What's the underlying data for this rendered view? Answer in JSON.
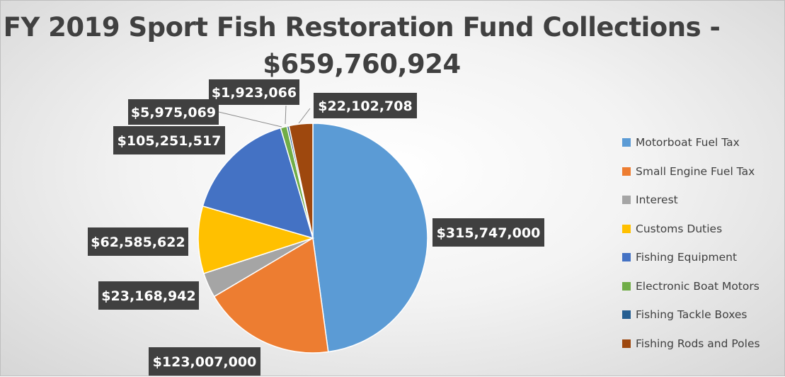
{
  "chart_data": {
    "type": "pie",
    "title_lines": [
      "FY 2019 Sport Fish Restoration Fund Collections -",
      "$659,760,924"
    ],
    "categories": [
      "Motorboat Fuel Tax",
      "Small Engine Fuel Tax",
      "Interest",
      "Customs Duties",
      "Fishing Equipment",
      "Electronic Boat Motors",
      "Fishing Tackle Boxes",
      "Fishing Rods and Poles"
    ],
    "values": [
      315747000,
      123007000,
      23168942,
      62585622,
      105251517,
      5975069,
      1923066,
      22102708
    ],
    "data_labels": [
      "$315,747,000",
      "$123,007,000",
      "$23,168,942",
      "$62,585,622",
      "$105,251,517",
      "$5,975,069",
      "$1,923,066",
      "$22,102,708"
    ],
    "colors": [
      "#5b9bd5",
      "#ed7d31",
      "#a5a5a5",
      "#ffc000",
      "#4472c4",
      "#70ad47",
      "#255e91",
      "#9e480e"
    ],
    "legend_position": "right",
    "start_angle": "12 o'clock, clockwise"
  }
}
